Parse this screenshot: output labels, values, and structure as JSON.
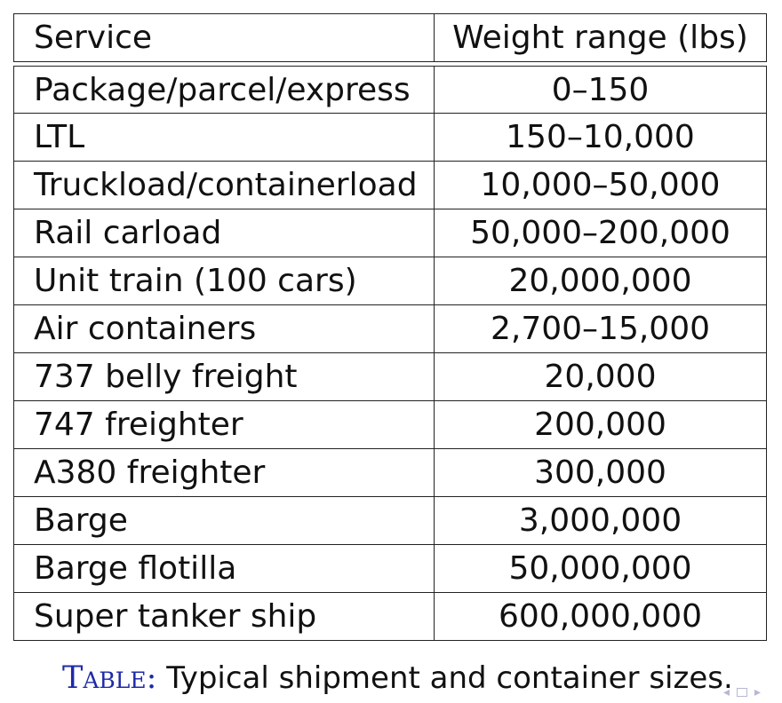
{
  "table": {
    "headers": {
      "service": "Service",
      "weight": "Weight range (lbs)"
    },
    "rows": [
      {
        "service": "Package/parcel/express",
        "weight": "0–150"
      },
      {
        "service": "LTL",
        "weight": "150–10,000"
      },
      {
        "service": "Truckload/containerload",
        "weight": "10,000–50,000"
      },
      {
        "service": "Rail carload",
        "weight": "50,000–200,000"
      },
      {
        "service": "Unit train (100 cars)",
        "weight": "20,000,000"
      },
      {
        "service": "Air containers",
        "weight": "2,700–15,000"
      },
      {
        "service": "737 belly freight",
        "weight": "20,000"
      },
      {
        "service": "747 freighter",
        "weight": "200,000"
      },
      {
        "service": "A380 freighter",
        "weight": "300,000"
      },
      {
        "service": "Barge",
        "weight": "3,000,000"
      },
      {
        "service": "Barge flotilla",
        "weight": "50,000,000"
      },
      {
        "service": "Super tanker ship",
        "weight": "600,000,000"
      }
    ]
  },
  "caption": {
    "label": "Table:",
    "text": " Typical shipment and container sizes."
  },
  "nav": {
    "left_arrow": "◂",
    "right_arrow": "▸"
  },
  "colors": {
    "caption_label": "#1f2aa8",
    "nav": "#b7b7d4"
  }
}
